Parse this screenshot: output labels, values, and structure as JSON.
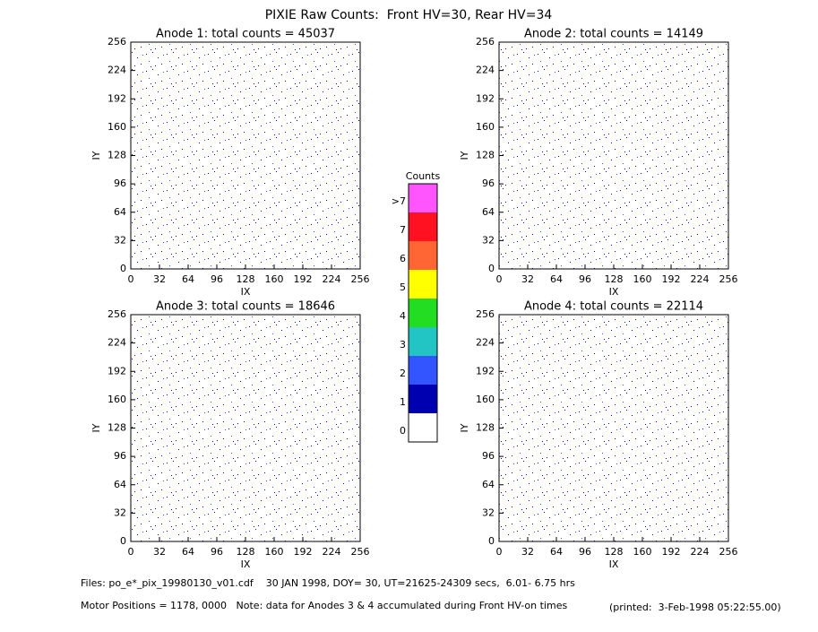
{
  "title": "PIXIE Raw Counts:  Front HV=30, Rear HV=34",
  "chart_data": [
    {
      "type": "heatmap",
      "title": "Anode 1: total counts = 45037",
      "xlabel": "IX",
      "ylabel": "IY",
      "xlim": [
        0,
        256
      ],
      "ylim": [
        0,
        256
      ],
      "xticks": [
        0,
        32,
        64,
        96,
        128,
        160,
        192,
        224,
        256
      ],
      "yticks": [
        0,
        32,
        64,
        96,
        128,
        160,
        192,
        224,
        256
      ]
    },
    {
      "type": "heatmap",
      "title": "Anode 2: total counts = 14149",
      "xlabel": "IX",
      "ylabel": "IY",
      "xlim": [
        0,
        256
      ],
      "ylim": [
        0,
        256
      ],
      "xticks": [
        0,
        32,
        64,
        96,
        128,
        160,
        192,
        224,
        256
      ],
      "yticks": [
        0,
        32,
        64,
        96,
        128,
        160,
        192,
        224,
        256
      ]
    },
    {
      "type": "heatmap",
      "title": "Anode 3: total counts = 18646",
      "xlabel": "IX",
      "ylabel": "IY",
      "xlim": [
        0,
        256
      ],
      "ylim": [
        0,
        256
      ],
      "xticks": [
        0,
        32,
        64,
        96,
        128,
        160,
        192,
        224,
        256
      ],
      "yticks": [
        0,
        32,
        64,
        96,
        128,
        160,
        192,
        224,
        256
      ]
    },
    {
      "type": "heatmap",
      "title": "Anode 4: total counts = 22114",
      "xlabel": "IX",
      "ylabel": "IY",
      "xlim": [
        0,
        256
      ],
      "ylim": [
        0,
        256
      ],
      "xticks": [
        0,
        32,
        64,
        96,
        128,
        160,
        192,
        224,
        256
      ],
      "yticks": [
        0,
        32,
        64,
        96,
        128,
        160,
        192,
        224,
        256
      ]
    }
  ],
  "colorbar": {
    "title": "Counts",
    "levels": [
      {
        "label": ">7",
        "color": "#ff55ff"
      },
      {
        "label": "7",
        "color": "#ff1122"
      },
      {
        "label": "6",
        "color": "#ff6633"
      },
      {
        "label": "5",
        "color": "#ffff00"
      },
      {
        "label": "4",
        "color": "#22dd22"
      },
      {
        "label": "3",
        "color": "#22c4c4"
      },
      {
        "label": "2",
        "color": "#3355ff"
      },
      {
        "label": "1",
        "color": "#0000b0"
      },
      {
        "label": "0",
        "color": "#ffffff"
      }
    ]
  },
  "footer": {
    "files": "Files: po_e*_pix_19980130_v01.cdf    30 JAN 1998, DOY= 30, UT=21625-24309 secs,  6.01- 6.75 hrs",
    "motor": "Motor Positions = 1178, 0000   Note: data for Anodes 3 & 4 accumulated during Front HV-on times",
    "printed": "(printed:  3-Feb-1998 05:22:55.00)"
  }
}
